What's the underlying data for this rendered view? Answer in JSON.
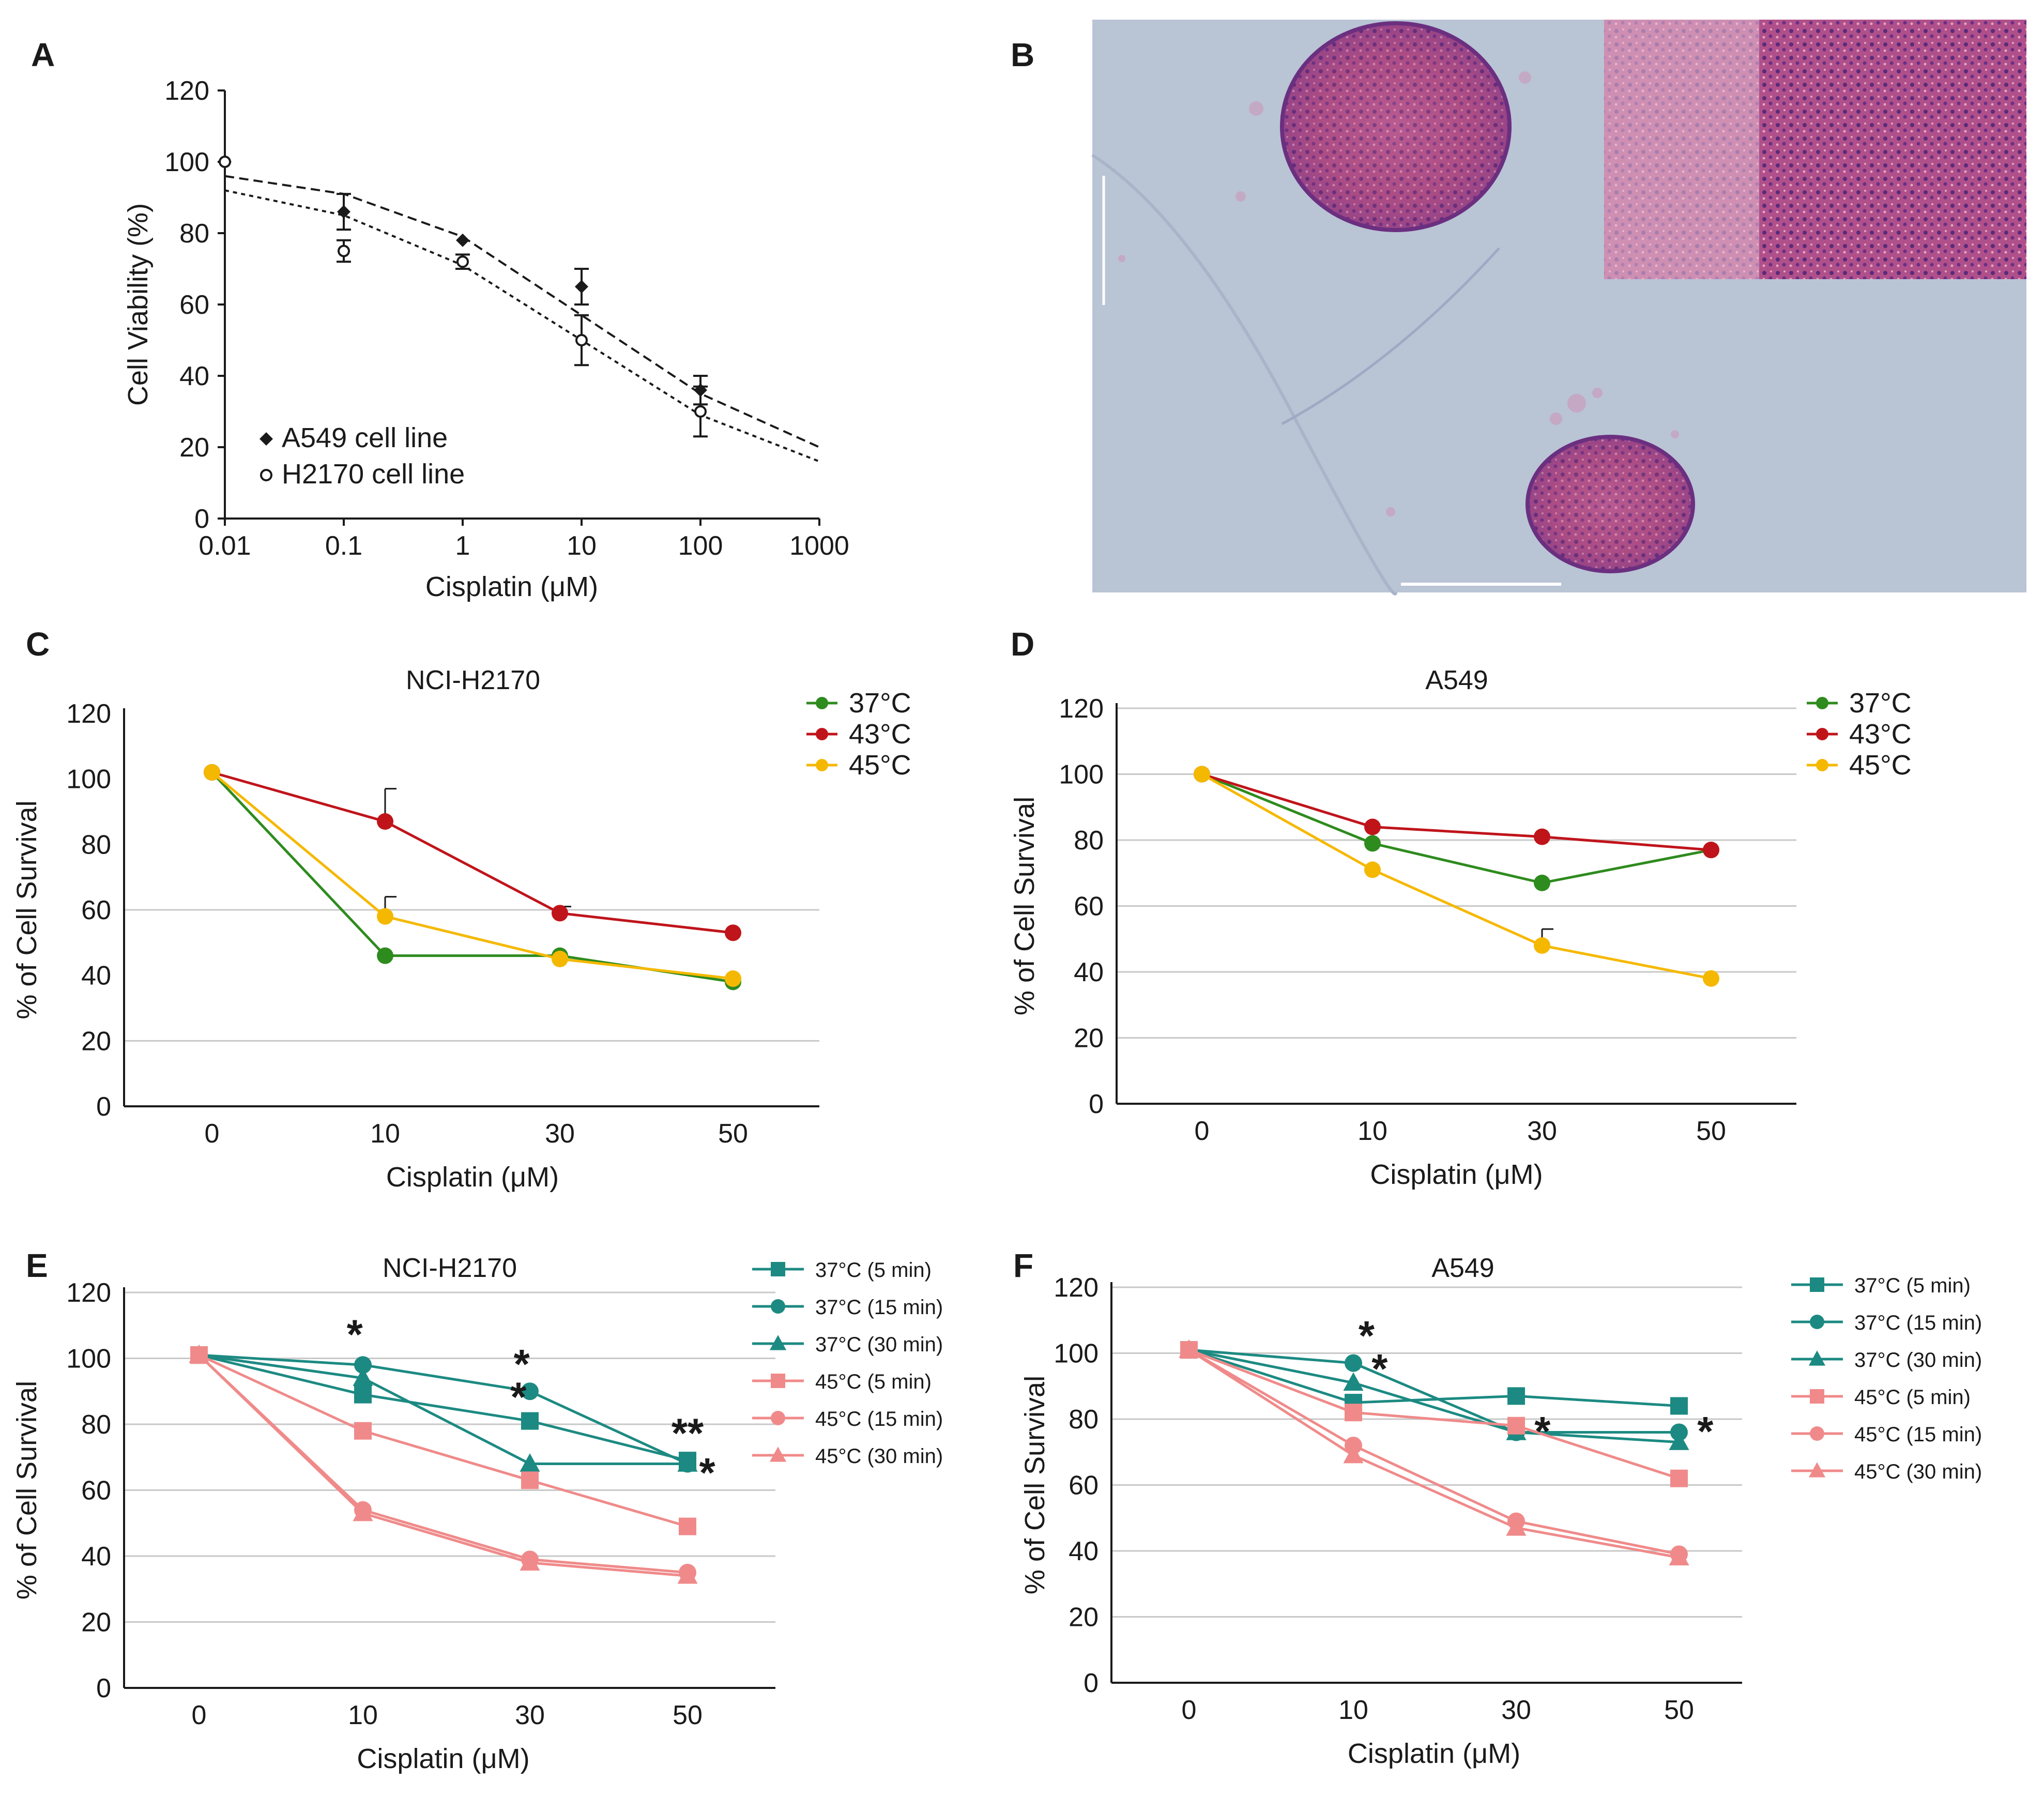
{
  "panel_labels": {
    "A": "A",
    "B": "B",
    "C": "C",
    "D": "D",
    "E": "E",
    "F": "F"
  },
  "colors": {
    "green": "#2e8b1e",
    "red": "#c0141b",
    "yellow": "#f5b800",
    "teal": "#1c8a82",
    "pink": "#f08a8a"
  },
  "micrograph": {
    "background": "#b8c4d6",
    "tissue": "#b85a8c",
    "inset_description": "H&E stained cross sections of tumor spheroids"
  },
  "chart_data": [
    {
      "id": "A",
      "type": "scatter",
      "xscale": "log",
      "xlabel": "Cisplatin (μM)",
      "ylabel": "Cell Viability (%)",
      "title": "",
      "ylim": [
        0,
        120
      ],
      "xlim": [
        0.01,
        1000
      ],
      "x_ticks": [
        "0.01",
        "0.1",
        "1",
        "10",
        "100",
        "1000"
      ],
      "y_ticks": [
        "0",
        "20",
        "40",
        "60",
        "80",
        "100",
        "120"
      ],
      "series": [
        {
          "name": "A549 cell line",
          "marker": "diamond-filled",
          "x": [
            0.01,
            0.1,
            1,
            10,
            100
          ],
          "y": [
            100,
            86,
            78,
            65,
            36
          ],
          "err": [
            1,
            5,
            1,
            5,
            4
          ],
          "fit": {
            "x": [
              0.01,
              0.1,
              1,
              10,
              100,
              1000
            ],
            "y": [
              96,
              91,
              79,
              57,
              35,
              20
            ]
          }
        },
        {
          "name": "H2170 cell line",
          "marker": "circle-open",
          "x": [
            0.01,
            0.1,
            1,
            10,
            100
          ],
          "y": [
            100,
            75,
            72,
            50,
            30
          ],
          "err": [
            1,
            3,
            2,
            7,
            7
          ],
          "fit": {
            "x": [
              0.01,
              0.1,
              1,
              10,
              100,
              1000
            ],
            "y": [
              92,
              85,
              71,
              50,
              29,
              16
            ]
          }
        }
      ]
    },
    {
      "id": "C",
      "type": "line",
      "title": "NCI-H2170",
      "xlabel": "Cisplatin (μM)",
      "ylabel": "% of Cell Survival",
      "categories": [
        "0",
        "10",
        "30",
        "50"
      ],
      "ylim": [
        0,
        120
      ],
      "y_ticks": [
        "0",
        "20",
        "40",
        "60",
        "80",
        "100",
        "120"
      ],
      "series": [
        {
          "name": "37°C",
          "color": "#2e8b1e",
          "values": [
            102,
            46,
            46,
            38
          ],
          "err": [
            0,
            0,
            0,
            0
          ]
        },
        {
          "name": "43°C",
          "color": "#c0141b",
          "values": [
            102,
            87,
            59,
            53
          ],
          "err": [
            0,
            10,
            2,
            0
          ]
        },
        {
          "name": "45°C",
          "color": "#f5b800",
          "values": [
            102,
            58,
            45,
            39
          ],
          "err": [
            0,
            6,
            0,
            0
          ]
        }
      ]
    },
    {
      "id": "D",
      "type": "line",
      "title": "A549",
      "xlabel": "Cisplatin (μM)",
      "ylabel": "% of Cell Survival",
      "categories": [
        "0",
        "10",
        "30",
        "50"
      ],
      "ylim": [
        0,
        120
      ],
      "y_ticks": [
        "0",
        "20",
        "40",
        "60",
        "80",
        "100",
        "120"
      ],
      "series": [
        {
          "name": "37°C",
          "color": "#2e8b1e",
          "values": [
            100,
            79,
            67,
            77
          ],
          "err": [
            0,
            0,
            0,
            0
          ]
        },
        {
          "name": "43°C",
          "color": "#c0141b",
          "values": [
            100,
            84,
            81,
            77
          ],
          "err": [
            0,
            0,
            0,
            0
          ]
        },
        {
          "name": "45°C",
          "color": "#f5b800",
          "values": [
            100,
            71,
            48,
            38
          ],
          "err": [
            0,
            0,
            5,
            0
          ]
        }
      ]
    },
    {
      "id": "E",
      "type": "line",
      "title": "NCI-H2170",
      "xlabel": "Cisplatin (μM)",
      "ylabel": "% of Cell Survival",
      "categories": [
        "0",
        "10",
        "30",
        "50"
      ],
      "ylim": [
        0,
        120
      ],
      "y_ticks": [
        "0",
        "20",
        "40",
        "60",
        "80",
        "100",
        "120"
      ],
      "series": [
        {
          "name": "37°C (5 min)",
          "color": "#1c8a82",
          "marker": "square",
          "values": [
            101,
            89,
            81,
            69
          ]
        },
        {
          "name": "37°C (15 min)",
          "color": "#1c8a82",
          "marker": "circle",
          "values": [
            101,
            98,
            90,
            68
          ]
        },
        {
          "name": "37°C (30 min)",
          "color": "#1c8a82",
          "marker": "triangle",
          "values": [
            101,
            94,
            68,
            68
          ]
        },
        {
          "name": "45°C (5 min)",
          "color": "#f08a8a",
          "marker": "square",
          "values": [
            101,
            78,
            63,
            49
          ]
        },
        {
          "name": "45°C (15 min)",
          "color": "#f08a8a",
          "marker": "circle",
          "values": [
            101,
            54,
            39,
            35
          ]
        },
        {
          "name": "45°C (30 min)",
          "color": "#f08a8a",
          "marker": "triangle",
          "values": [
            101,
            53,
            38,
            34
          ]
        }
      ],
      "annotations": [
        {
          "text": "*",
          "category": "10",
          "y": 103,
          "dx": -0.05
        },
        {
          "text": "*",
          "category": "30",
          "y": 94,
          "dx": -0.05
        },
        {
          "text": "*",
          "category": "30",
          "y": 84,
          "dx": -0.07
        },
        {
          "text": "**",
          "category": "50",
          "y": 73,
          "dx": 0.0
        },
        {
          "text": "*",
          "category": "50",
          "y": 61,
          "dx": 0.12
        }
      ]
    },
    {
      "id": "F",
      "type": "line",
      "title": "A549",
      "xlabel": "Cisplatin (μM)",
      "ylabel": "% of Cell Survival",
      "categories": [
        "0",
        "10",
        "30",
        "50"
      ],
      "ylim": [
        0,
        120
      ],
      "y_ticks": [
        "0",
        "20",
        "40",
        "60",
        "80",
        "100",
        "120"
      ],
      "series": [
        {
          "name": "37°C (5 min)",
          "color": "#1c8a82",
          "marker": "square",
          "values": [
            101,
            85,
            87,
            84
          ]
        },
        {
          "name": "37°C (15 min)",
          "color": "#1c8a82",
          "marker": "circle",
          "values": [
            101,
            97,
            76,
            76
          ]
        },
        {
          "name": "37°C (30 min)",
          "color": "#1c8a82",
          "marker": "triangle",
          "values": [
            101,
            91,
            76,
            73
          ]
        },
        {
          "name": "45°C (5 min)",
          "color": "#f08a8a",
          "marker": "square",
          "values": [
            101,
            82,
            78,
            62
          ]
        },
        {
          "name": "45°C (15 min)",
          "color": "#f08a8a",
          "marker": "circle",
          "values": [
            101,
            72,
            49,
            39
          ]
        },
        {
          "name": "45°C (30 min)",
          "color": "#f08a8a",
          "marker": "triangle",
          "values": [
            101,
            69,
            47,
            38
          ]
        }
      ],
      "annotations": [
        {
          "text": "*",
          "category": "10",
          "y": 101,
          "dx": 0.08
        },
        {
          "text": "*",
          "category": "10",
          "y": 91,
          "dx": 0.16
        },
        {
          "text": "*",
          "category": "30",
          "y": 72,
          "dx": 0.16
        },
        {
          "text": "*",
          "category": "50",
          "y": 72,
          "dx": 0.16
        }
      ]
    }
  ]
}
